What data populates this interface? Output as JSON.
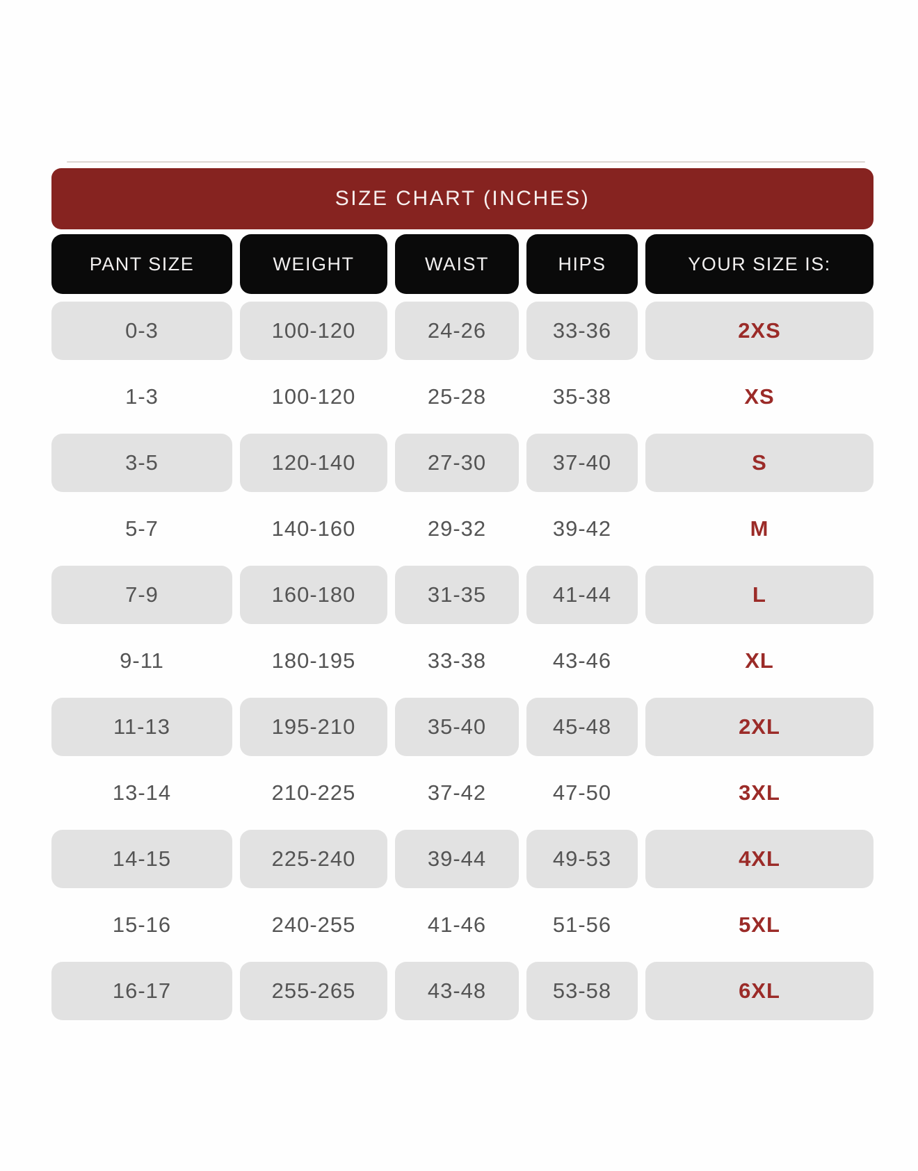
{
  "title": "SIZE CHART (INCHES)",
  "colors": {
    "banner_background": "#862320",
    "banner_text": "#f7efee",
    "header_background": "#0a0a0a",
    "header_text": "#f2f0f0",
    "alt_row_background": "#e2e2e2",
    "cell_text": "#545454",
    "size_label_text": "#9b2b28"
  },
  "chart_data": {
    "type": "table",
    "title": "SIZE CHART (INCHES)",
    "columns": [
      "PANT SIZE",
      "WEIGHT",
      "WAIST",
      "HIPS",
      "YOUR SIZE IS:"
    ],
    "rows": [
      [
        "0-3",
        "100-120",
        "24-26",
        "33-36",
        "2XS"
      ],
      [
        "1-3",
        "100-120",
        "25-28",
        "35-38",
        "XS"
      ],
      [
        "3-5",
        "120-140",
        "27-30",
        "37-40",
        "S"
      ],
      [
        "5-7",
        "140-160",
        "29-32",
        "39-42",
        "M"
      ],
      [
        "7-9",
        "160-180",
        "31-35",
        "41-44",
        "L"
      ],
      [
        "9-11",
        "180-195",
        "33-38",
        "43-46",
        "XL"
      ],
      [
        "11-13",
        "195-210",
        "35-40",
        "45-48",
        "2XL"
      ],
      [
        "13-14",
        "210-225",
        "37-42",
        "47-50",
        "3XL"
      ],
      [
        "14-15",
        "225-240",
        "39-44",
        "49-53",
        "4XL"
      ],
      [
        "15-16",
        "240-255",
        "41-46",
        "51-56",
        "5XL"
      ],
      [
        "16-17",
        "255-265",
        "43-48",
        "53-58",
        "6XL"
      ]
    ],
    "layout": {
      "alternating_gray_rows": "odd rows (1st, 3rd, ...) have gray pill cells",
      "units": "inches"
    }
  }
}
